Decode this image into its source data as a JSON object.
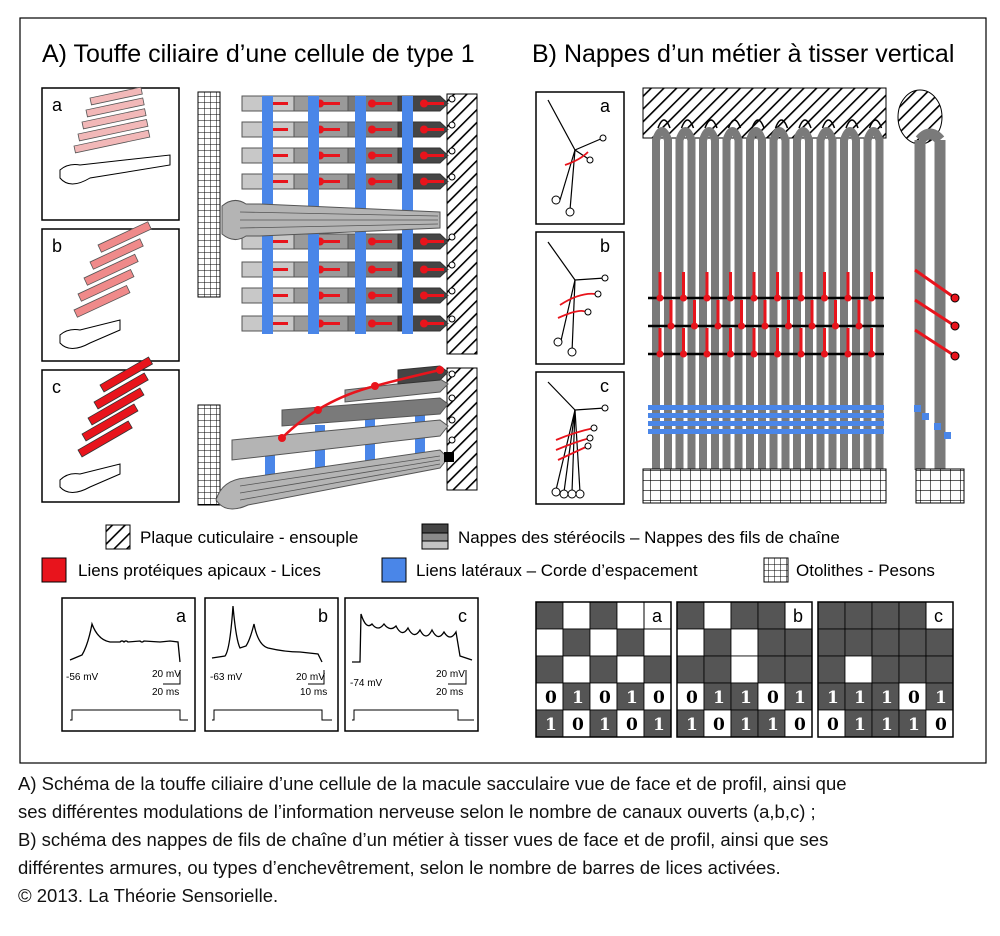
{
  "panelA": {
    "title": "A)  Touffe ciliaire d’une cellule de type 1",
    "insets": [
      "a",
      "b",
      "c"
    ]
  },
  "panelB": {
    "title": "B)  Nappes d’un métier à tisser vertical",
    "insets": [
      "a",
      "b",
      "c"
    ]
  },
  "legend": {
    "plaque": "Plaque cuticulaire - ensouple",
    "nappes": "Nappes des stéréocils – Nappes des fils de chaîne",
    "liens_apicaux": "Liens protéiques apicaux - Lices",
    "liens_lateraux": "Liens latéraux – Corde d’espacement",
    "otolithes": "Otolithes - Pesons"
  },
  "traces": [
    {
      "letter": "a",
      "voltage": "-56 mV",
      "scale_v": "20 mV",
      "scale_t": "20 ms"
    },
    {
      "letter": "b",
      "voltage": "-63 mV",
      "scale_v": "20 mV",
      "scale_t": "10 ms"
    },
    {
      "letter": "c",
      "voltage": "-74 mV",
      "scale_v": "20 mV",
      "scale_t": "20 ms"
    }
  ],
  "armures": [
    {
      "letter": "a",
      "row1": [
        "0",
        "1",
        "0",
        "1",
        "0"
      ],
      "row2": [
        "1",
        "0",
        "1",
        "0",
        "1"
      ]
    },
    {
      "letter": "b",
      "row1": [
        "0",
        "1",
        "1",
        "0",
        "1"
      ],
      "row2": [
        "1",
        "0",
        "1",
        "1",
        "0"
      ]
    },
    {
      "letter": "c",
      "row1": [
        "1",
        "1",
        "1",
        "0",
        "1"
      ],
      "row2": [
        "0",
        "1",
        "1",
        "1",
        "0"
      ]
    }
  ],
  "caption": {
    "line1": "A) Schéma de la touffe ciliaire d’une cellule de la macule sacculaire vue de face et de profil, ainsi que",
    "line2": "ses différentes modulations de l’information nerveuse selon le nombre de canaux ouverts (a,b,c) ;",
    "line3": "B) schéma des nappes de fils de chaîne d’un métier à tisser vues de face et de profil, ainsi que ses",
    "line4": "différentes armures, ou types d’enchevêtrement, selon le nombre de barres de lices activées.",
    "line5": "© 2013. La Théorie Sensorielle."
  },
  "colors": {
    "red": "#e8141c",
    "blue": "#4a86e8",
    "dark": "#454545",
    "mid": "#7a7a7a",
    "light": "#b4b4b4",
    "pink": "#f2b8b8"
  }
}
